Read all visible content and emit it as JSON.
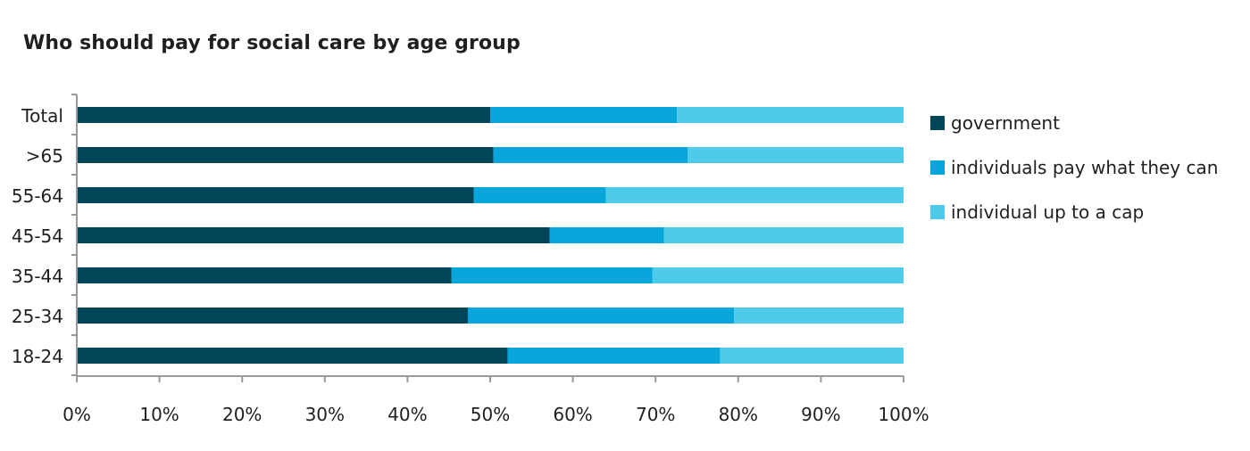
{
  "chart_data": {
    "type": "bar",
    "orientation": "horizontal",
    "stacked": true,
    "title": "Who should pay for social care by age group",
    "xlabel": "",
    "ylabel": "",
    "xlim": [
      0,
      100
    ],
    "x_ticks": [
      "0%",
      "10%",
      "20%",
      "30%",
      "40%",
      "50%",
      "60%",
      "70%",
      "80%",
      "90%",
      "100%"
    ],
    "categories": [
      "Total",
      ">65",
      "55-64",
      "45-54",
      "35-44",
      "25-34",
      "18-24"
    ],
    "series": [
      {
        "name": "government",
        "color": "#024458",
        "values": [
          50,
          50.4,
          48,
          57.2,
          45.3,
          47.3,
          52.1
        ]
      },
      {
        "name": "individuals pay what they can",
        "color": "#06a6dd",
        "values": [
          22.6,
          23.5,
          16,
          13.8,
          24.3,
          32.2,
          25.7
        ]
      },
      {
        "name": "individual up to a cap",
        "color": "#4ecbea",
        "values": [
          27.4,
          26.1,
          36,
          29,
          30.4,
          20.5,
          22.2
        ]
      }
    ],
    "grid": false,
    "legend_position": "right"
  }
}
